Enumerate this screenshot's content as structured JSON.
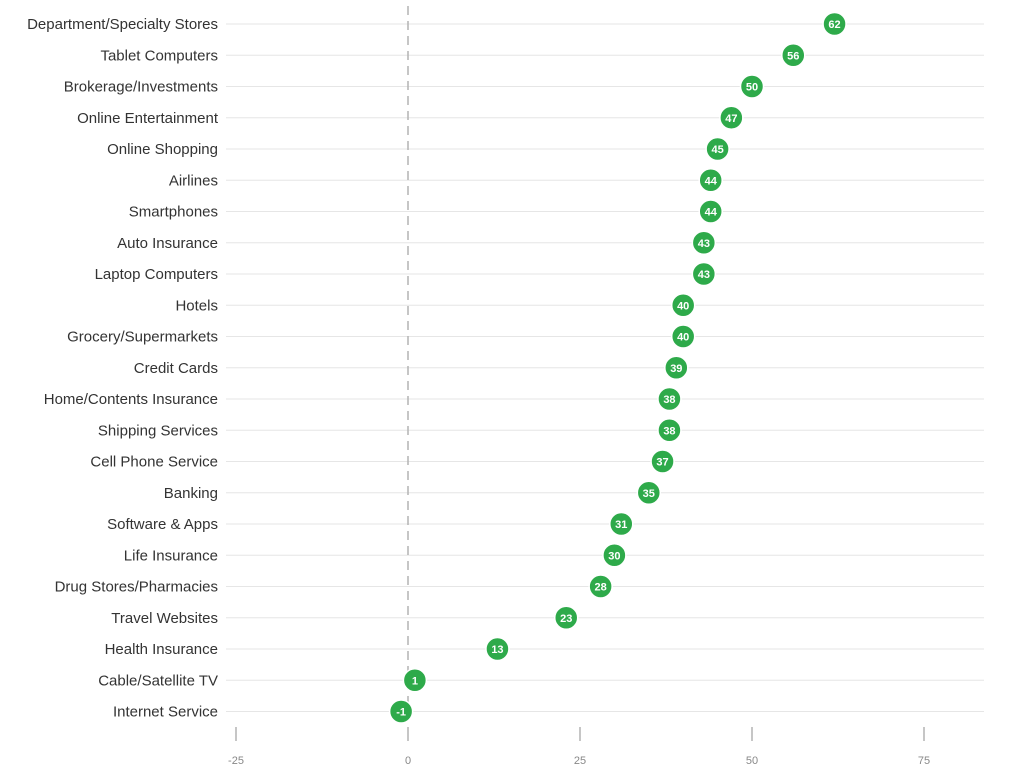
{
  "chart_data": {
    "type": "scatter",
    "title": "",
    "xlabel": "",
    "ylabel": "",
    "xlim": [
      -25,
      85
    ],
    "xticks": [
      -25,
      0,
      25,
      50,
      75
    ],
    "grid": "horizontal",
    "legend": "none",
    "colors": {
      "marker": "#2eaa4a",
      "marker_text": "#ffffff",
      "row_line": "#e6e6e6",
      "zero_line": "#b3b3b3",
      "label": "#333333",
      "tick": "#888888"
    },
    "categories": [
      "Department/Specialty Stores",
      "Tablet Computers",
      "Brokerage/Investments",
      "Online Entertainment",
      "Online Shopping",
      "Airlines",
      "Smartphones",
      "Auto Insurance",
      "Laptop Computers",
      "Hotels",
      "Grocery/Supermarkets",
      "Credit Cards",
      "Home/Contents Insurance",
      "Shipping Services",
      "Cell Phone Service",
      "Banking",
      "Software & Apps",
      "Life Insurance",
      "Drug Stores/Pharmacies",
      "Travel Websites",
      "Health Insurance",
      "Cable/Satellite TV",
      "Internet Service"
    ],
    "values": [
      62,
      56,
      50,
      47,
      45,
      44,
      44,
      43,
      43,
      40,
      40,
      39,
      38,
      38,
      37,
      35,
      31,
      30,
      28,
      23,
      13,
      1,
      -1
    ]
  }
}
